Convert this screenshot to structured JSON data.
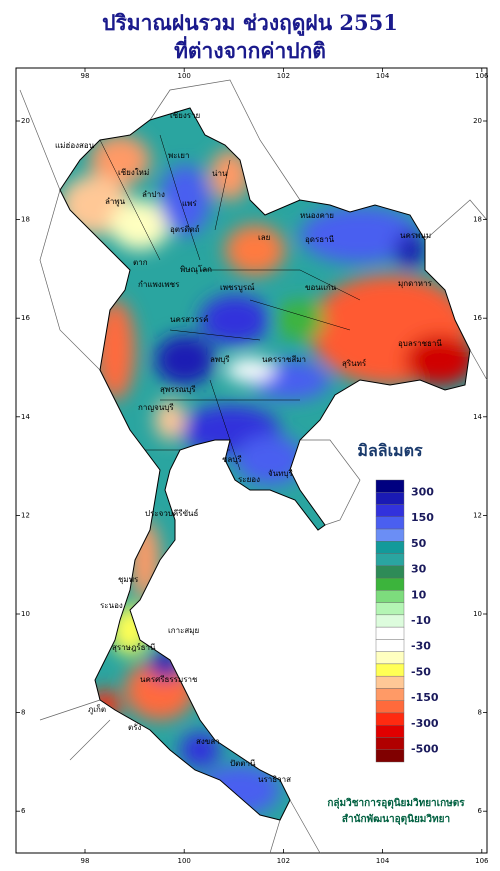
{
  "title": [
    "ปริมาณฝนรวม ช่วงฤดูฝน 2551",
    "ที่ต่างจากค่าปกติ"
  ],
  "map": {
    "lon_ticks": [
      98,
      100,
      102,
      104,
      106
    ],
    "lat_ticks": [
      6,
      8,
      10,
      12,
      14,
      16,
      18,
      20
    ]
  },
  "legend": {
    "title": "มิลลิเมตร",
    "colors": [
      "#000080",
      "#1a1ab4",
      "#3232dc",
      "#4a5ff0",
      "#6b8ef5",
      "#139a9a",
      "#2aa5a0",
      "#2e8b57",
      "#3cb43c",
      "#7ddc7d",
      "#b4f5b4",
      "#ddfcdd",
      "#ffffff",
      "#ffffff",
      "#ffffc0",
      "#ffff55",
      "#ffc896",
      "#ff9a66",
      "#ff6a3c",
      "#ff2a10",
      "#e00000",
      "#b00000",
      "#800000"
    ],
    "labels": [
      300,
      150,
      50,
      30,
      10,
      -10,
      -30,
      -50,
      -150,
      -300,
      -500
    ]
  },
  "places": [
    "เชียงราย",
    "แม่ฮ่องสอน",
    "เชียงใหม่",
    "ลำพูน",
    "ลำปาง",
    "พะเยา",
    "น่าน",
    "แพร่",
    "อุตรดิตถ์",
    "ตาก",
    "พิษณุโลก",
    "กำแพงเพชร",
    "เพชรบูรณ์",
    "เลย",
    "หนองคาย",
    "อุดรธานี",
    "นครพนม",
    "มุกดาหาร",
    "ขอนแก่น",
    "อุบลราชธานี",
    "นครสวรรค์",
    "ลพบุรี",
    "สุพรรณบุรี",
    "กาญจนบุรี",
    "นครราชสีมา",
    "สุรินทร์",
    "ชลบุรี",
    "ระยอง",
    "จันทบุรี",
    "ประจวบคีรีขันธ์",
    "ชุมพร",
    "ระนอง",
    "เกาะสมุย",
    "สุราษฎร์ธานี",
    "นครศรีธรรมราช",
    "ภูเก็ต",
    "ตรัง",
    "สงขลา",
    "ปัตตานี",
    "นราธิวาส"
  ],
  "credit": [
    "กลุ่มวิชาการอุตุนิยมวิทยาเกษตร",
    "สำนักพัฒนาอุตุนิยมวิทยา"
  ]
}
